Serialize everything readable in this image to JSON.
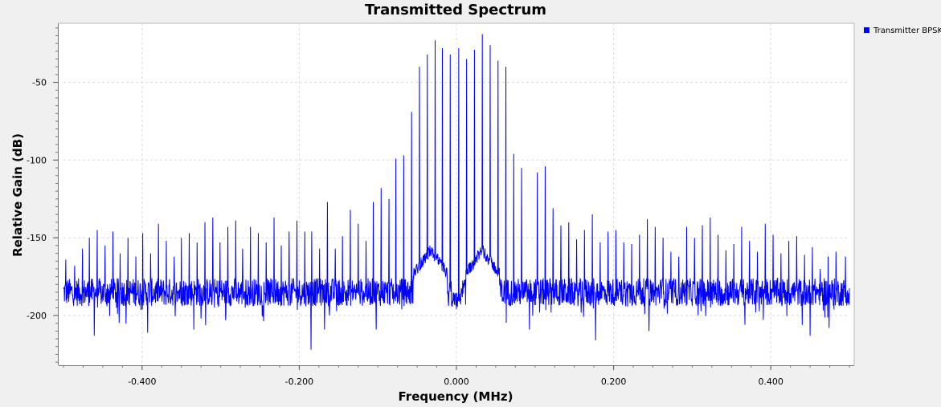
{
  "chart_data": {
    "type": "line",
    "title": "Transmitted Spectrum",
    "xlabel": "Frequency (MHz)",
    "ylabel": "Relative Gain (dB)",
    "xlim": [
      -0.5,
      0.5
    ],
    "ylim": [
      -232,
      -12
    ],
    "x_ticks": [
      -0.4,
      -0.2,
      0.0,
      0.2,
      0.4
    ],
    "x_tick_labels": [
      "-0.400",
      "-0.200",
      "0.000",
      "0.200",
      "0.400"
    ],
    "y_ticks": [
      -50,
      -100,
      -150,
      -200
    ],
    "y_tick_labels": [
      "-50",
      "-100",
      "-150",
      "-200"
    ],
    "grid": true,
    "legend_position": "top-right",
    "series": [
      {
        "name": "Transmitter BPSK",
        "color": "#0000ff",
        "noise_floor_db": -185,
        "spikes": [
          [
            -0.497,
            -164
          ],
          [
            -0.486,
            -168
          ],
          [
            -0.476,
            -157
          ],
          [
            -0.467,
            -150
          ],
          [
            -0.457,
            -145
          ],
          [
            -0.447,
            -155
          ],
          [
            -0.437,
            -146
          ],
          [
            -0.428,
            -160
          ],
          [
            -0.418,
            -150
          ],
          [
            -0.408,
            -162
          ],
          [
            -0.399,
            -147
          ],
          [
            -0.389,
            -160
          ],
          [
            -0.379,
            -141
          ],
          [
            -0.369,
            -152
          ],
          [
            -0.359,
            -162
          ],
          [
            -0.35,
            -150
          ],
          [
            -0.34,
            -147
          ],
          [
            -0.33,
            -153
          ],
          [
            -0.32,
            -140
          ],
          [
            -0.31,
            -137
          ],
          [
            -0.301,
            -153
          ],
          [
            -0.291,
            -143
          ],
          [
            -0.281,
            -139
          ],
          [
            -0.272,
            -157
          ],
          [
            -0.262,
            -143
          ],
          [
            -0.252,
            -147
          ],
          [
            -0.242,
            -153
          ],
          [
            -0.232,
            -137
          ],
          [
            -0.223,
            -155
          ],
          [
            -0.213,
            -146
          ],
          [
            -0.203,
            -139
          ],
          [
            -0.193,
            -146
          ],
          [
            -0.184,
            -146
          ],
          [
            -0.174,
            -157
          ],
          [
            -0.164,
            -127
          ],
          [
            -0.154,
            -157
          ],
          [
            -0.145,
            -149
          ],
          [
            -0.135,
            -132
          ],
          [
            -0.125,
            -141
          ],
          [
            -0.115,
            -152
          ],
          [
            -0.106,
            -127
          ],
          [
            -0.096,
            -118
          ],
          [
            -0.086,
            -125
          ],
          [
            -0.077,
            -99
          ],
          [
            -0.067,
            -97
          ],
          [
            -0.057,
            -69
          ],
          [
            -0.047,
            -40
          ],
          [
            -0.037,
            -32
          ],
          [
            -0.027,
            -23
          ],
          [
            -0.018,
            -28
          ],
          [
            -0.008,
            -32
          ],
          [
            0.003,
            -28
          ],
          [
            0.013,
            -35
          ],
          [
            0.023,
            -29
          ],
          [
            0.033,
            -19
          ],
          [
            0.043,
            -26
          ],
          [
            0.053,
            -36
          ],
          [
            0.063,
            -40
          ],
          [
            0.073,
            -96
          ],
          [
            0.083,
            -105
          ],
          [
            0.093,
            -111
          ],
          [
            0.103,
            -108
          ],
          [
            0.113,
            -104
          ],
          [
            0.123,
            -131
          ],
          [
            0.133,
            -142
          ],
          [
            0.143,
            -140
          ],
          [
            0.153,
            -151
          ],
          [
            0.163,
            -145
          ],
          [
            0.173,
            -135
          ],
          [
            0.183,
            -153
          ],
          [
            0.193,
            -146
          ],
          [
            0.203,
            -145
          ],
          [
            0.213,
            -153
          ],
          [
            0.223,
            -154
          ],
          [
            0.233,
            -148
          ],
          [
            0.243,
            -138
          ],
          [
            0.253,
            -143
          ],
          [
            0.263,
            -150
          ],
          [
            0.273,
            -159
          ],
          [
            0.283,
            -162
          ],
          [
            0.293,
            -143
          ],
          [
            0.303,
            -150
          ],
          [
            0.313,
            -142
          ],
          [
            0.323,
            -137
          ],
          [
            0.333,
            -148
          ],
          [
            0.343,
            -158
          ],
          [
            0.353,
            -154
          ],
          [
            0.363,
            -143
          ],
          [
            0.373,
            -152
          ],
          [
            0.383,
            -159
          ],
          [
            0.393,
            -141
          ],
          [
            0.403,
            -148
          ],
          [
            0.413,
            -160
          ],
          [
            0.423,
            -152
          ],
          [
            0.433,
            -149
          ],
          [
            0.443,
            -161
          ],
          [
            0.453,
            -156
          ],
          [
            0.463,
            -170
          ],
          [
            0.473,
            -162
          ],
          [
            0.483,
            -159
          ],
          [
            0.495,
            -162
          ]
        ],
        "dips": [
          [
            -0.461,
            -213
          ],
          [
            -0.393,
            -211
          ],
          [
            -0.334,
            -209
          ],
          [
            -0.185,
            -222
          ],
          [
            -0.168,
            -209
          ],
          [
            -0.102,
            -209
          ],
          [
            0.0,
            -196
          ],
          [
            0.093,
            -209
          ],
          [
            0.177,
            -216
          ],
          [
            0.245,
            -210
          ],
          [
            0.367,
            -206
          ],
          [
            0.45,
            -213
          ],
          [
            0.474,
            -208
          ]
        ]
      }
    ]
  }
}
